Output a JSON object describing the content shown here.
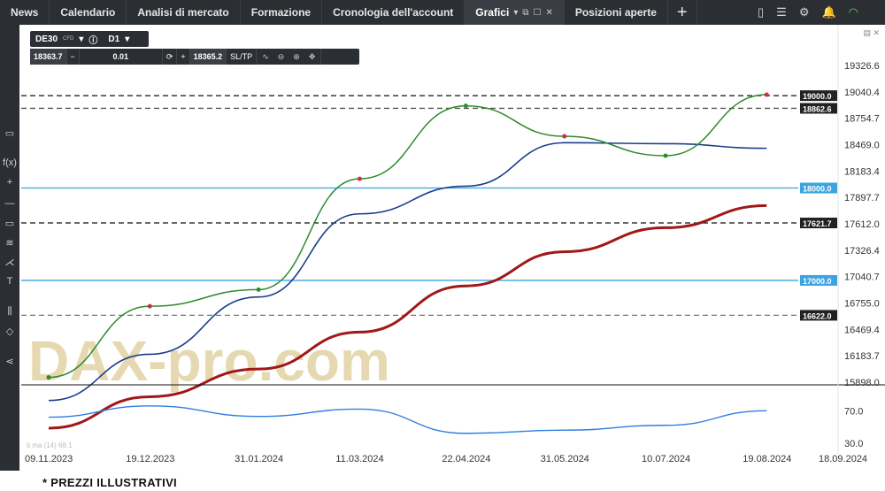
{
  "top_tabs": [
    {
      "label": "News"
    },
    {
      "label": "Calendario"
    },
    {
      "label": "Analisi di mercato"
    },
    {
      "label": "Formazione"
    },
    {
      "label": "Cronologia dell'account"
    },
    {
      "label": "Grafici"
    },
    {
      "label": "Posizioni aperte"
    }
  ],
  "toolbar": {
    "symbol": "DE30",
    "symbol_type": "CFD",
    "timeframe": "D1",
    "bid": "18363.7",
    "lot": "0.01",
    "ask": "18365.2",
    "sltp": "SL/TP"
  },
  "footnote": "* PREZZI ILLUSTRATIVI",
  "watermark": "DAX-pro.com",
  "chart_data": {
    "type": "line",
    "instrument": "DE30",
    "timeframe": "D1",
    "price_axis_ticks": [
      "19326.6",
      "19040.4",
      "18754.7",
      "18469.0",
      "18183.4",
      "17897.7",
      "17612.0",
      "17326.4",
      "17040.7",
      "16755.0",
      "16469.4",
      "16183.7",
      "15898.0"
    ],
    "price_ylim": [
      15898.0,
      19326.6
    ],
    "date_ticks": [
      "09.11.2023",
      "19.12.2023",
      "31.01.2024",
      "11.03.2024",
      "22.04.2024",
      "31.05.2024",
      "10.07.2024",
      "19.08.2024",
      "18.09.2024"
    ],
    "horizontal_levels": [
      {
        "value": 19000.0,
        "label": "19000.0",
        "style": "dashed",
        "color": "#111111"
      },
      {
        "value": 18862.6,
        "label": "18862.6",
        "style": "dashed",
        "color": "#555555"
      },
      {
        "value": 18000.0,
        "label": "18000.0",
        "style": "solid",
        "color": "#3ba3e0"
      },
      {
        "value": 17621.7,
        "label": "17621.7",
        "style": "dashed",
        "color": "#111111"
      },
      {
        "value": 17000.0,
        "label": "17000.0",
        "style": "solid",
        "color": "#3ba3e0"
      },
      {
        "value": 16622.0,
        "label": "16622.0",
        "style": "dashed",
        "color": "#777777"
      }
    ],
    "moving_averages": [
      {
        "color": "#1a3e8c",
        "x": [
          "09.11.2023",
          "19.12.2023",
          "31.01.2024",
          "11.03.2024",
          "22.04.2024",
          "31.05.2024",
          "10.07.2024",
          "19.08.2024"
        ],
        "y": [
          15700,
          16200,
          16820,
          17720,
          18020,
          18490,
          18480,
          18430
        ]
      },
      {
        "color": "#a01818",
        "x": [
          "09.11.2023",
          "19.12.2023",
          "31.01.2024",
          "11.03.2024",
          "22.04.2024",
          "31.05.2024",
          "10.07.2024",
          "19.08.2024"
        ],
        "y": [
          15400,
          15740,
          16040,
          16440,
          16940,
          17310,
          17570,
          17810
        ]
      }
    ],
    "price_line": {
      "x": [
        "09.11.2023",
        "19.12.2023",
        "31.01.2024",
        "11.03.2024",
        "22.04.2024",
        "31.05.2024",
        "10.07.2024",
        "19.08.2024"
      ],
      "y": [
        15950,
        16720,
        16900,
        18100,
        18890,
        18560,
        18350,
        19010
      ]
    },
    "oscillator": {
      "ticks": [
        "70.0",
        "30.0"
      ],
      "ylim": [
        20,
        90
      ],
      "label": "ti ma (14) 68.1",
      "color": "#2f7ee0",
      "x": [
        "09.11.2023",
        "19.12.2023",
        "31.01.2024",
        "11.03.2024",
        "22.04.2024",
        "31.05.2024",
        "10.07.2024",
        "19.08.2024"
      ],
      "y": [
        62,
        76,
        63,
        72,
        42,
        46,
        52,
        70
      ]
    }
  }
}
